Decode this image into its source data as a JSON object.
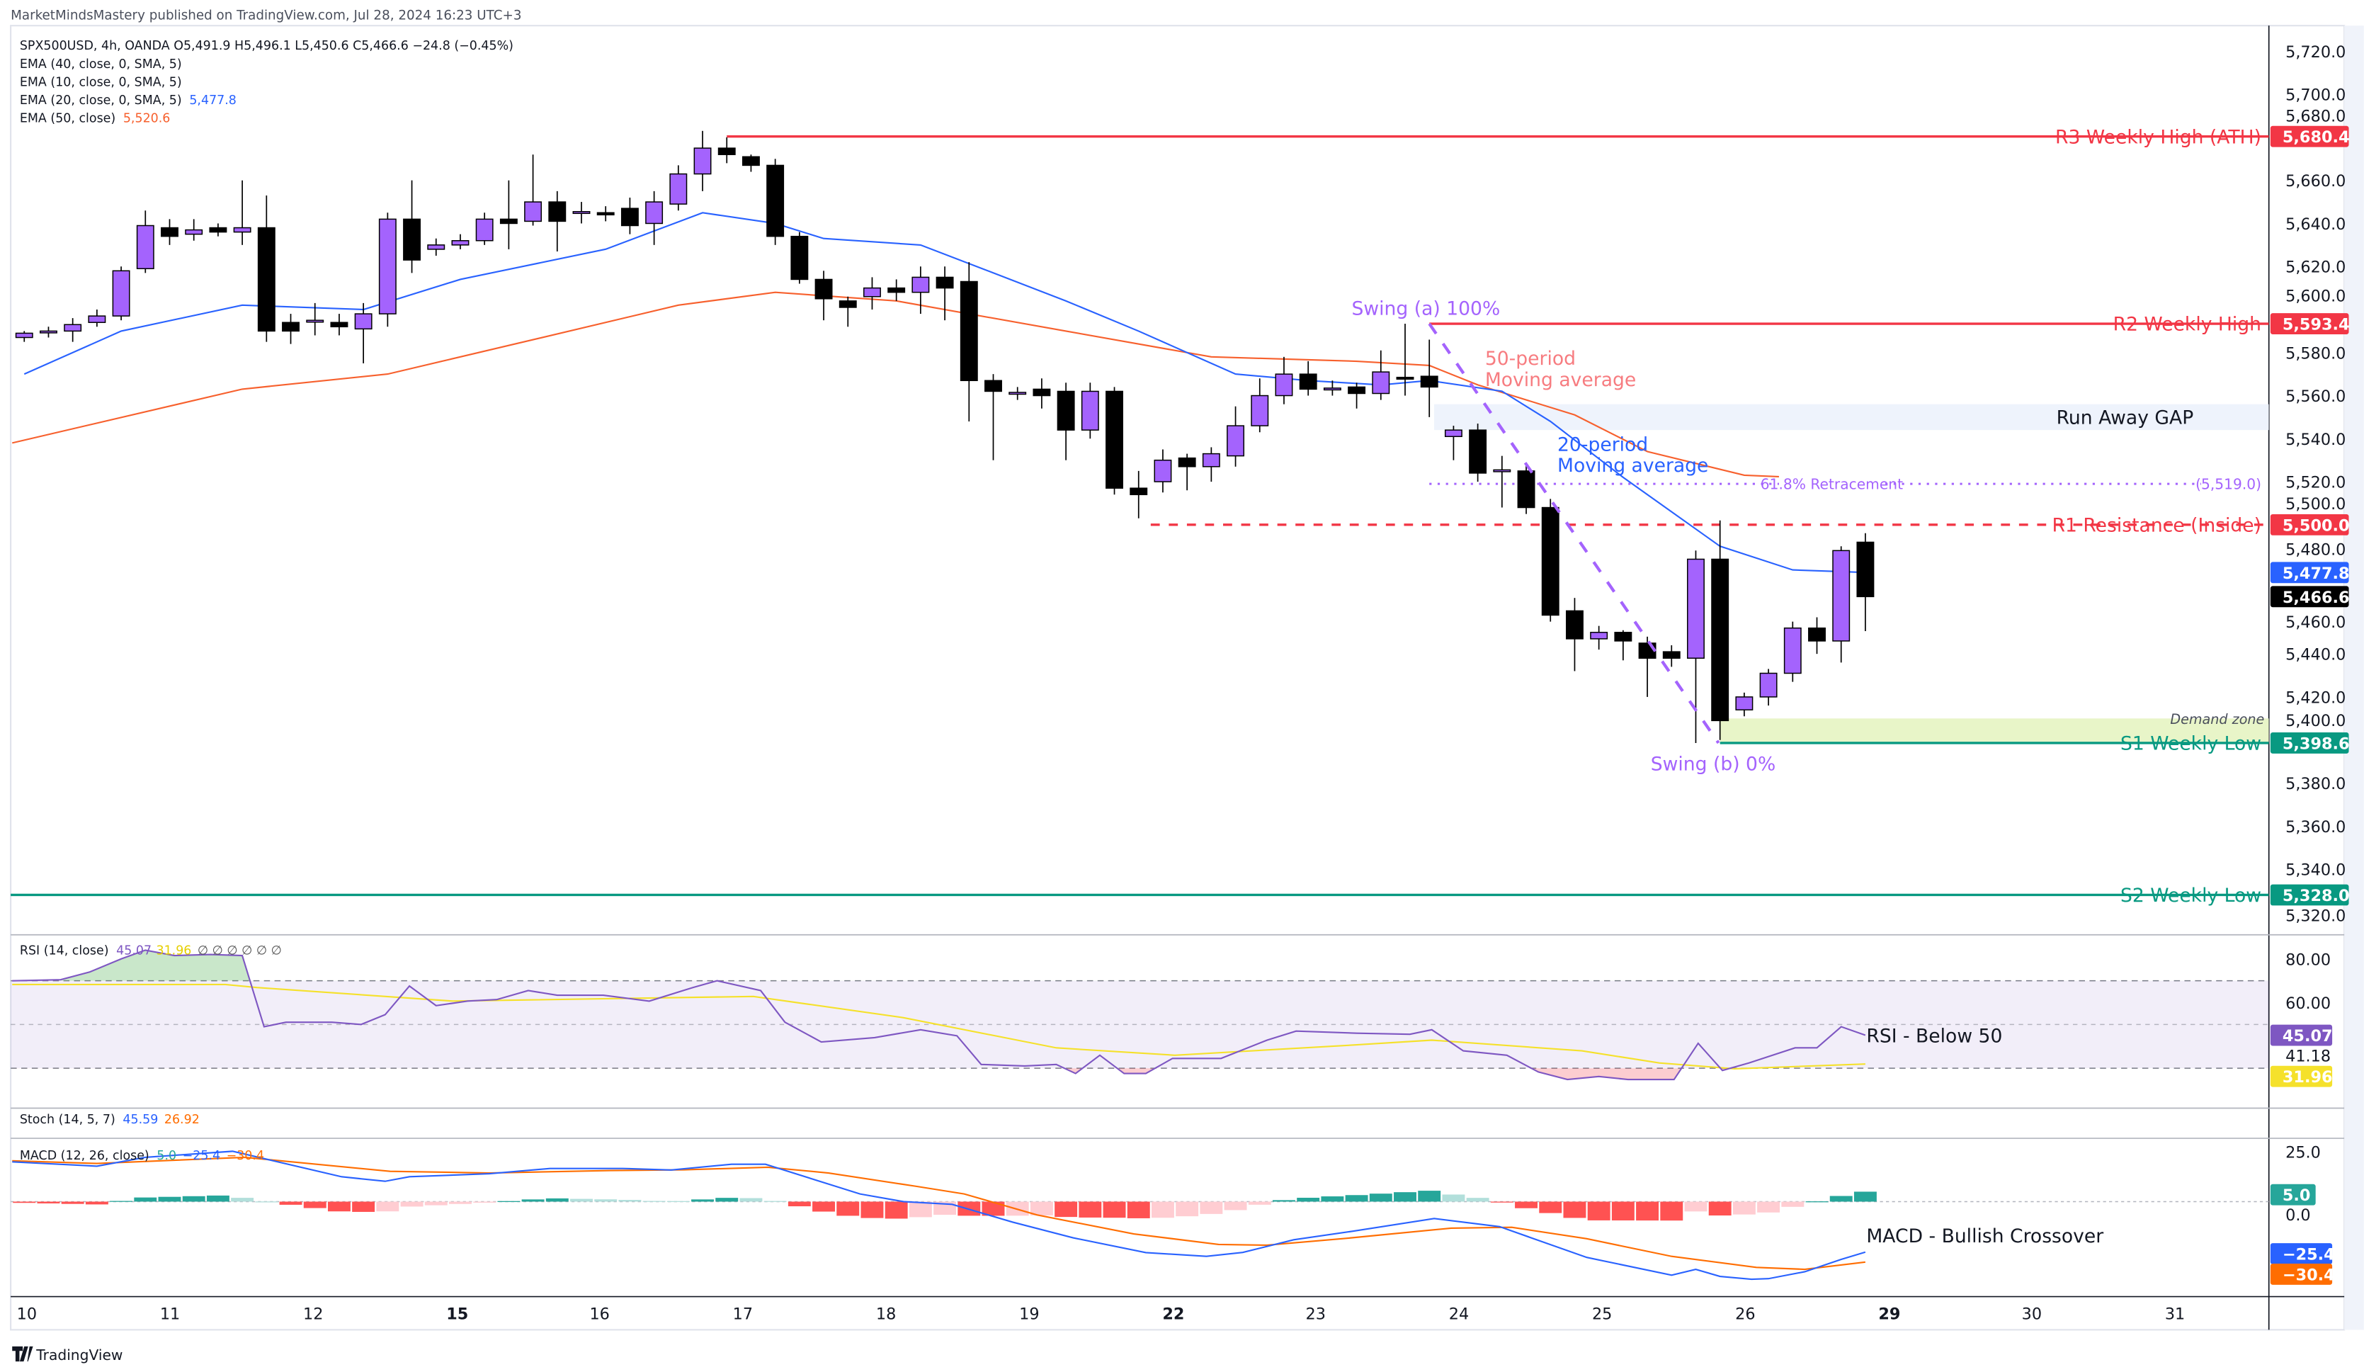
{
  "publisher_line": "MarketMindsMastery published on TradingView.com, Jul 28, 2024 16:23 UTC+3",
  "legend": {
    "symbol_line": "SPX500USD, 4h, OANDA  O5,491.9  H5,496.1  L5,450.6  C5,466.6  −24.8 (−0.45%)",
    "ema40": "EMA (40, close, 0, SMA, 5)",
    "ema10": "EMA (10, close, 0, SMA, 5)",
    "ema20": "EMA (20, close, 0, SMA, 5)",
    "ema20_value": "5,477.8",
    "ema50": "EMA (50, close)",
    "ema50_value": "5,520.6",
    "rsi": "RSI (14, close)",
    "rsi_value": "45.07",
    "rsi_ma_value": "31.96",
    "rsi_extra": "∅ ∅ ∅ ∅ ∅ ∅",
    "stoch": "Stoch (14, 5, 7)",
    "stoch_k": "45.59",
    "stoch_d": "26.92",
    "macd": "MACD (12, 26, close)",
    "macd_hist": "5.0",
    "macd_line": "−25.4",
    "macd_signal": "−30.4"
  },
  "colors": {
    "bull": "#a463fd",
    "bear": "#000000",
    "ema20": "#2962ff",
    "ema50": "#f7602d",
    "resistance": "#f23645",
    "support": "#089981",
    "fib": "#a463fd",
    "rsi": "#7e57c2",
    "rsi_ma": "#f5e12b",
    "macd": "#2962ff",
    "signal": "#ff6d00"
  },
  "chart_data": {
    "type": "candlestick",
    "symbol": "SPX500USD",
    "interval": "4h",
    "x_axis_labels": [
      "10",
      "11",
      "12",
      "15",
      "16",
      "17",
      "18",
      "19",
      "22",
      "23",
      "24",
      "25",
      "26",
      "29",
      "30",
      "31"
    ],
    "x_axis_bold": [
      "15",
      "22",
      "29"
    ],
    "price_ticks": [
      "5,720.0",
      "5,700.0",
      "5,680.0",
      "5,660.0",
      "5,640.0",
      "5,620.0",
      "5,600.0",
      "5,580.0",
      "5,560.0",
      "5,540.0",
      "5,520.0",
      "5,500.0",
      "5,480.0",
      "5,460.0",
      "5,440.0",
      "5,420.0",
      "5,400.0",
      "5,380.0",
      "5,360.0",
      "5,340.0",
      "5,320.0"
    ],
    "ylim": [
      5310,
      5730
    ],
    "candles_ohlc": [
      [
        5587,
        5590,
        5585,
        5589
      ],
      [
        5590,
        5592,
        5587,
        5590
      ],
      [
        5590,
        5596,
        5585,
        5593
      ],
      [
        5594,
        5600,
        5592,
        5597
      ],
      [
        5597,
        5620,
        5595,
        5618
      ],
      [
        5619,
        5646,
        5617,
        5639
      ],
      [
        5638,
        5642,
        5630,
        5634
      ],
      [
        5635,
        5642,
        5632,
        5637
      ],
      [
        5638,
        5640,
        5634,
        5636
      ],
      [
        5636,
        5660,
        5630,
        5638
      ],
      [
        5638,
        5653,
        5585,
        5590
      ],
      [
        5594,
        5598,
        5584,
        5590
      ],
      [
        5595,
        5603,
        5588,
        5595
      ],
      [
        5594,
        5598,
        5588,
        5592
      ],
      [
        5591,
        5603,
        5575,
        5598
      ],
      [
        5598,
        5645,
        5592,
        5642
      ],
      [
        5642,
        5660,
        5617,
        5623
      ],
      [
        5628,
        5633,
        5625,
        5630
      ],
      [
        5630,
        5635,
        5628,
        5632
      ],
      [
        5632,
        5645,
        5630,
        5642
      ],
      [
        5642,
        5660,
        5628,
        5640
      ],
      [
        5641,
        5672,
        5639,
        5650
      ],
      [
        5650,
        5655,
        5627,
        5641
      ],
      [
        5645,
        5650,
        5640,
        5645.5
      ],
      [
        5645,
        5648,
        5641,
        5644
      ],
      [
        5647,
        5652,
        5635,
        5639
      ],
      [
        5640,
        5655,
        5630,
        5650
      ],
      [
        5649,
        5667,
        5646,
        5663
      ],
      [
        5663,
        5683,
        5655,
        5675
      ],
      [
        5675,
        5680,
        5668,
        5672
      ],
      [
        5671,
        5672,
        5664,
        5667
      ],
      [
        5667,
        5670,
        5630,
        5634
      ],
      [
        5634,
        5636,
        5612,
        5614
      ],
      [
        5614,
        5618,
        5595,
        5605
      ],
      [
        5604,
        5606,
        5592,
        5601
      ],
      [
        5606,
        5615,
        5600,
        5610
      ],
      [
        5610,
        5614,
        5604,
        5608
      ],
      [
        5608,
        5620,
        5598,
        5615
      ],
      [
        5615,
        5620,
        5595,
        5610
      ],
      [
        5613,
        5622,
        5548,
        5567
      ],
      [
        5567,
        5570,
        5530,
        5562
      ],
      [
        5561,
        5564,
        5558,
        5561.5
      ],
      [
        5563,
        5568,
        5554,
        5560
      ],
      [
        5562,
        5566,
        5530,
        5544
      ],
      [
        5544,
        5566,
        5540,
        5562
      ],
      [
        5562,
        5564,
        5514,
        5517
      ],
      [
        5517,
        5525,
        5503,
        5514
      ],
      [
        5520,
        5535,
        5515,
        5530
      ],
      [
        5531,
        5533,
        5516,
        5527
      ],
      [
        5527,
        5536,
        5520,
        5533
      ],
      [
        5532,
        5555,
        5527,
        5546
      ],
      [
        5546,
        5568,
        5543,
        5560
      ],
      [
        5560,
        5578,
        5556,
        5570
      ],
      [
        5570,
        5576,
        5560,
        5563
      ],
      [
        5563,
        5567,
        5560,
        5563.5
      ],
      [
        5564,
        5566,
        5554,
        5561
      ],
      [
        5561,
        5581,
        5558,
        5571
      ],
      [
        5568.5,
        5593.4,
        5560,
        5568
      ],
      [
        5569,
        5586,
        5550,
        5564
      ],
      [
        5541,
        5546,
        5530,
        5544
      ],
      [
        5544,
        5547,
        5520,
        5524
      ],
      [
        5525,
        5532,
        5508,
        5525.5
      ],
      [
        5525,
        5528,
        5505,
        5508
      ],
      [
        5508,
        5512,
        5455,
        5458
      ],
      [
        5460,
        5466,
        5432,
        5447
      ],
      [
        5447,
        5453,
        5442,
        5450
      ],
      [
        5450,
        5451,
        5437,
        5446
      ],
      [
        5445,
        5448,
        5420,
        5438
      ],
      [
        5441,
        5444,
        5434,
        5438
      ],
      [
        5438,
        5488,
        5398.6,
        5484
      ],
      [
        5484,
        5502,
        5400,
        5409
      ],
      [
        5414,
        5422,
        5411,
        5420
      ],
      [
        5420,
        5433,
        5416,
        5431
      ],
      [
        5431,
        5455,
        5427,
        5452
      ],
      [
        5452,
        5457,
        5440,
        5446
      ],
      [
        5446,
        5490,
        5436,
        5488
      ],
      [
        5491.9,
        5496.1,
        5450.6,
        5466.6
      ]
    ],
    "ema20": [
      [
        0,
        5570
      ],
      [
        4,
        5590
      ],
      [
        9,
        5602
      ],
      [
        14,
        5600
      ],
      [
        18,
        5614
      ],
      [
        24,
        5628
      ],
      [
        28,
        5645
      ],
      [
        31,
        5640
      ],
      [
        33,
        5633
      ],
      [
        37,
        5630
      ],
      [
        40,
        5617
      ],
      [
        43,
        5604
      ],
      [
        46,
        5590
      ],
      [
        50,
        5570
      ],
      [
        53,
        5567
      ],
      [
        56,
        5565
      ],
      [
        58,
        5567
      ],
      [
        61,
        5562
      ],
      [
        63,
        5548
      ],
      [
        66,
        5522
      ],
      [
        68,
        5506
      ],
      [
        70,
        5490
      ],
      [
        73,
        5479
      ],
      [
        76,
        5477.8
      ]
    ],
    "ema50": [
      [
        -0.5,
        5538
      ],
      [
        9,
        5563
      ],
      [
        15,
        5570
      ],
      [
        21,
        5586
      ],
      [
        27,
        5602
      ],
      [
        31,
        5608
      ],
      [
        36,
        5604
      ],
      [
        43,
        5590
      ],
      [
        49,
        5578
      ],
      [
        55,
        5576
      ],
      [
        58,
        5574
      ],
      [
        60,
        5565
      ],
      [
        64,
        5551
      ],
      [
        67,
        5534
      ],
      [
        71,
        5523
      ],
      [
        76,
        5520.6
      ]
    ],
    "last_price": "5,466.6",
    "ema20_tag": "5,477.8",
    "levels": [
      {
        "label": "R3 Weekly High (ATH)",
        "price": 5680.4,
        "tag": "5,680.4",
        "from_bar": 29,
        "style": "solid",
        "color": "#f23645"
      },
      {
        "label": "R2 Weekly High",
        "price": 5593.4,
        "tag": "5,593.4",
        "from_bar": 58,
        "style": "solid",
        "color": "#f23645"
      },
      {
        "label": "R1 Resistance (Inside)",
        "price": 5500.0,
        "tag": "5,500.0",
        "from_bar": 46.5,
        "style": "dashed",
        "color": "#f23645"
      },
      {
        "label": "S1 Weekly Low",
        "price": 5398.6,
        "tag": "5,398.6",
        "from_bar": 70,
        "style": "solid",
        "color": "#089981"
      },
      {
        "label": "S2 Weekly Low",
        "price": 5328.0,
        "tag": "5,328.0",
        "from_bar": -0.6,
        "style": "solid",
        "color": "#089981"
      }
    ],
    "gap_zone": {
      "label": "Run Away GAP",
      "top": 5556,
      "bottom": 5544,
      "from_bar": 58.2
    },
    "demand_zone": {
      "label": "Demand zone",
      "top": 5410,
      "bottom": 5398.6,
      "from_bar": 70
    },
    "fib_618": {
      "label": "61.8% Retracement",
      "value_label": "(5,519.0)",
      "price": 5519.0,
      "from_bar": 58,
      "to_bar": 89
    },
    "swing_a": {
      "label": "Swing (a) 100%",
      "bar": 58,
      "price": 5593.4
    },
    "swing_b": {
      "label": "Swing (b) 0%",
      "bar": 70,
      "price": 5398.6
    },
    "ma50_note": [
      "50-period",
      "Moving average"
    ],
    "ma20_note": [
      "20-period",
      "Moving average"
    ],
    "rsi": {
      "ticks": [
        "80.00",
        "60.00"
      ],
      "extra_label": "41.18",
      "levels": [
        70,
        50,
        30
      ],
      "note": "RSI - Below 50",
      "line": [
        [
          -0.5,
          70
        ],
        [
          1.5,
          70.5
        ],
        [
          2.7,
          74
        ],
        [
          4,
          80
        ],
        [
          5,
          84
        ],
        [
          6.2,
          81.5
        ],
        [
          7.7,
          82
        ],
        [
          9,
          81.5
        ],
        [
          9.9,
          49
        ],
        [
          10.8,
          51
        ],
        [
          12.7,
          51
        ],
        [
          13.9,
          50
        ],
        [
          14.9,
          54.5
        ],
        [
          15.9,
          67.6
        ],
        [
          17,
          58.6
        ],
        [
          18.3,
          60.7
        ],
        [
          19.5,
          61.4
        ],
        [
          20.8,
          65.5
        ],
        [
          22,
          63.4
        ],
        [
          23.9,
          63.4
        ],
        [
          25.8,
          60.7
        ],
        [
          27.6,
          66.9
        ],
        [
          28.6,
          70
        ],
        [
          30.4,
          65.5
        ],
        [
          31.4,
          51
        ],
        [
          32.9,
          42
        ],
        [
          35.1,
          44
        ],
        [
          37,
          47.6
        ],
        [
          38.5,
          44.8
        ],
        [
          39.5,
          31.7
        ],
        [
          41.3,
          31
        ],
        [
          42.6,
          31.7
        ],
        [
          43.4,
          27.6
        ],
        [
          44.4,
          35.9
        ],
        [
          45.4,
          27.6
        ],
        [
          46.3,
          27.6
        ],
        [
          47.4,
          34.5
        ],
        [
          49.4,
          34.5
        ],
        [
          51.3,
          42.8
        ],
        [
          52.5,
          47
        ],
        [
          55,
          46
        ],
        [
          57.2,
          45.5
        ],
        [
          58.1,
          47.6
        ],
        [
          59.4,
          37.9
        ],
        [
          61.2,
          35.9
        ],
        [
          62.5,
          28.3
        ],
        [
          63.7,
          24.8
        ],
        [
          65,
          26.2
        ],
        [
          66.2,
          24.8
        ],
        [
          68.1,
          24.8
        ],
        [
          69.1,
          41.4
        ],
        [
          70.1,
          29
        ],
        [
          71.2,
          32.4
        ],
        [
          73.1,
          39.3
        ],
        [
          74,
          39.3
        ],
        [
          75,
          49
        ],
        [
          76,
          45.07
        ]
      ],
      "ma": [
        [
          -0.5,
          68.3
        ],
        [
          8.3,
          68.3
        ],
        [
          9.6,
          66.9
        ],
        [
          17.7,
          60.7
        ],
        [
          30.1,
          62.8
        ],
        [
          36.3,
          53.1
        ],
        [
          42.6,
          39.3
        ],
        [
          47.5,
          35.9
        ],
        [
          55,
          40.7
        ],
        [
          58.1,
          42.8
        ],
        [
          64.3,
          37.9
        ],
        [
          67.5,
          32.4
        ],
        [
          70.6,
          29.7
        ],
        [
          76,
          31.96
        ]
      ]
    },
    "macd": {
      "ticks": [
        "25.0",
        "0.0"
      ],
      "note": "MACD - Bullish Crossover",
      "line": [
        [
          -0.5,
          20
        ],
        [
          3,
          17.8
        ],
        [
          5,
          22.3
        ],
        [
          8.6,
          25.3
        ],
        [
          13.1,
          12.5
        ],
        [
          14.9,
          10.2
        ],
        [
          15.9,
          12.5
        ],
        [
          19.2,
          14
        ],
        [
          21.7,
          16.7
        ],
        [
          24.7,
          16.7
        ],
        [
          26.7,
          15.9
        ],
        [
          29.2,
          18.8
        ],
        [
          30.6,
          18.8
        ],
        [
          34.5,
          3.9
        ],
        [
          36.3,
          0
        ],
        [
          38.3,
          -1.4
        ],
        [
          40.8,
          -10.3
        ],
        [
          43.3,
          -18.2
        ],
        [
          46.3,
          -25.6
        ],
        [
          48.8,
          -27.5
        ],
        [
          50.3,
          -25.5
        ],
        [
          52.4,
          -19.2
        ],
        [
          54.9,
          -14.8
        ],
        [
          58.2,
          -8.5
        ],
        [
          60.9,
          -12.6
        ],
        [
          64.5,
          -28
        ],
        [
          68,
          -37
        ],
        [
          69,
          -34
        ],
        [
          70,
          -37.6
        ],
        [
          71.3,
          -39
        ],
        [
          72,
          -38.7
        ],
        [
          73.5,
          -35.2
        ],
        [
          75,
          -29
        ],
        [
          76,
          -25.4
        ]
      ],
      "signal": [
        [
          -0.5,
          20.5
        ],
        [
          3,
          19.2
        ],
        [
          9.1,
          22.3
        ],
        [
          15.1,
          15.2
        ],
        [
          19.2,
          14.4
        ],
        [
          24.2,
          15.6
        ],
        [
          27.2,
          16
        ],
        [
          30.7,
          17.3
        ],
        [
          33.2,
          14.4
        ],
        [
          36.8,
          7.7
        ],
        [
          38.8,
          3.9
        ],
        [
          41.8,
          -6.7
        ],
        [
          45.8,
          -16.2
        ],
        [
          49.3,
          -21.5
        ],
        [
          51.3,
          -21.9
        ],
        [
          54.4,
          -18.6
        ],
        [
          58.9,
          -13.3
        ],
        [
          61.4,
          -12.9
        ],
        [
          64.5,
          -18.6
        ],
        [
          68,
          -27.5
        ],
        [
          71.5,
          -33
        ],
        [
          73.5,
          -34
        ],
        [
          76,
          -30.4
        ]
      ]
    }
  },
  "footer": {
    "brand": "TradingView"
  }
}
